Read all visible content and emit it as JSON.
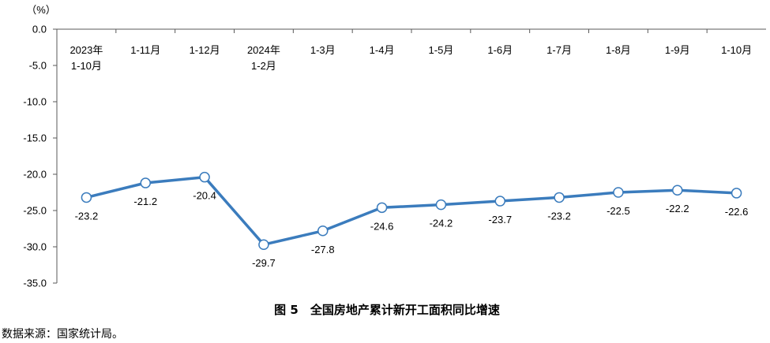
{
  "chart_data": {
    "type": "line",
    "title": "图 5　全国房地产累计新开工面积同比增速",
    "xlabel": "",
    "ylabel": "（%）",
    "categories": [
      "1-10月",
      "1-11月",
      "1-12月",
      "1-2月",
      "1-3月",
      "1-4月",
      "1-5月",
      "1-6月",
      "1-7月",
      "1-8月",
      "1-9月",
      "1-10月"
    ],
    "category_years": [
      "2023年",
      "",
      "",
      "2024年",
      "",
      "",
      "",
      "",
      "",
      "",
      "",
      ""
    ],
    "series": [
      {
        "values": [
          -23.2,
          -21.2,
          -20.4,
          -29.7,
          -27.8,
          -24.6,
          -24.2,
          -23.7,
          -23.2,
          -22.5,
          -22.2,
          -22.6
        ]
      }
    ],
    "ylim": [
      -35,
      0
    ],
    "yticks": [
      "0.0",
      "-5.0",
      "-10.0",
      "-15.0",
      "-20.0",
      "-25.0",
      "-30.0",
      "-35.0"
    ],
    "x_axis_position": "top",
    "data_labels": true,
    "markers": "hollow-circle",
    "grid": false,
    "colors": {
      "line": "#3B7CBD",
      "marker_fill": "#FFFFFF",
      "axis": "#595959"
    }
  },
  "source_note": "数据来源：国家统计局。"
}
